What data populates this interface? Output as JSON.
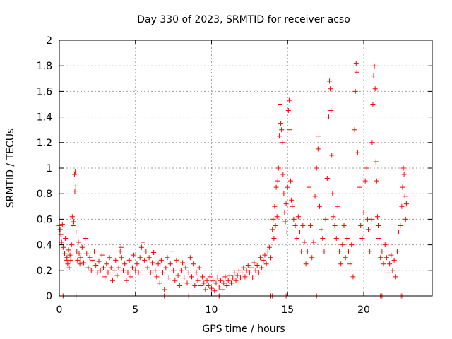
{
  "chart_data": {
    "type": "scatter",
    "title": "Day 330 of 2023, SRMTID for receiver acso",
    "xlabel": "GPS time / hours",
    "ylabel": "SRMTID / TECUs",
    "xlim": [
      0,
      24.5
    ],
    "ylim": [
      0,
      2
    ],
    "xticks": [
      0,
      5,
      10,
      15,
      20
    ],
    "xtick_labels": [
      "0",
      "5",
      "10",
      "15",
      "20"
    ],
    "yticks": [
      0,
      0.2,
      0.4,
      0.6,
      0.8,
      1,
      1.2,
      1.4,
      1.6,
      1.8,
      2
    ],
    "ytick_labels": [
      "0",
      "0.2",
      "0.4",
      "0.6",
      "0.8",
      "1",
      "1.2",
      "1.4",
      "1.6",
      "1.8",
      "2"
    ],
    "grid": true,
    "marker": "+",
    "color": "#ff0000",
    "series": [
      {
        "name": "acso",
        "points": [
          [
            0.0,
            0.55
          ],
          [
            0.05,
            0.52
          ],
          [
            0.1,
            0.48
          ],
          [
            0.15,
            0.42
          ],
          [
            0.2,
            0.56
          ],
          [
            0.25,
            0.38
          ],
          [
            0.3,
            0.5
          ],
          [
            0.35,
            0.33
          ],
          [
            0.4,
            0.45
          ],
          [
            0.45,
            0.28
          ],
          [
            0.5,
            0.3
          ],
          [
            0.55,
            0.25
          ],
          [
            0.6,
            0.36
          ],
          [
            0.65,
            0.22
          ],
          [
            0.7,
            0.32
          ],
          [
            0.75,
            0.28
          ],
          [
            0.8,
            0.4
          ],
          [
            0.85,
            0.62
          ],
          [
            0.9,
            0.55
          ],
          [
            0.95,
            0.58
          ],
          [
            1.0,
            0.95
          ],
          [
            1.02,
            0.82
          ],
          [
            1.05,
            0.97
          ],
          [
            1.08,
            0.86
          ],
          [
            1.1,
            0.5
          ],
          [
            1.15,
            0.35
          ],
          [
            1.2,
            0.28
          ],
          [
            1.25,
            0.42
          ],
          [
            1.3,
            0.33
          ],
          [
            1.35,
            0.25
          ],
          [
            1.4,
            0.3
          ],
          [
            1.5,
            0.38
          ],
          [
            1.6,
            0.26
          ],
          [
            1.7,
            0.45
          ],
          [
            1.8,
            0.33
          ],
          [
            1.9,
            0.22
          ],
          [
            2.0,
            0.3
          ],
          [
            2.1,
            0.2
          ],
          [
            2.2,
            0.28
          ],
          [
            2.3,
            0.35
          ],
          [
            2.4,
            0.24
          ],
          [
            2.5,
            0.18
          ],
          [
            2.6,
            0.27
          ],
          [
            2.7,
            0.2
          ],
          [
            2.8,
            0.32
          ],
          [
            2.9,
            0.22
          ],
          [
            3.0,
            0.15
          ],
          [
            3.1,
            0.25
          ],
          [
            3.2,
            0.18
          ],
          [
            3.3,
            0.3
          ],
          [
            3.4,
            0.22
          ],
          [
            3.5,
            0.12
          ],
          [
            3.6,
            0.2
          ],
          [
            3.7,
            0.28
          ],
          [
            3.8,
            0.16
          ],
          [
            3.9,
            0.22
          ],
          [
            4.0,
            0.35
          ],
          [
            4.05,
            0.38
          ],
          [
            4.1,
            0.3
          ],
          [
            4.2,
            0.2
          ],
          [
            4.3,
            0.25
          ],
          [
            4.4,
            0.12
          ],
          [
            4.5,
            0.18
          ],
          [
            4.6,
            0.28
          ],
          [
            4.7,
            0.15
          ],
          [
            4.8,
            0.22
          ],
          [
            4.9,
            0.32
          ],
          [
            5.0,
            0.2
          ],
          [
            5.1,
            0.25
          ],
          [
            5.2,
            0.18
          ],
          [
            5.3,
            0.3
          ],
          [
            5.4,
            0.38
          ],
          [
            5.5,
            0.42
          ],
          [
            5.6,
            0.28
          ],
          [
            5.7,
            0.35
          ],
          [
            5.8,
            0.22
          ],
          [
            5.9,
            0.3
          ],
          [
            6.0,
            0.18
          ],
          [
            6.1,
            0.26
          ],
          [
            6.2,
            0.34
          ],
          [
            6.3,
            0.2
          ],
          [
            6.4,
            0.15
          ],
          [
            6.5,
            0.25
          ],
          [
            6.6,
            0.1
          ],
          [
            6.7,
            0.28
          ],
          [
            6.8,
            0.18
          ],
          [
            6.9,
            0.05
          ],
          [
            7.0,
            0.22
          ],
          [
            7.1,
            0.3
          ],
          [
            7.2,
            0.14
          ],
          [
            7.3,
            0.25
          ],
          [
            7.4,
            0.35
          ],
          [
            7.5,
            0.2
          ],
          [
            7.6,
            0.12
          ],
          [
            7.7,
            0.28
          ],
          [
            7.8,
            0.16
          ],
          [
            7.9,
            0.08
          ],
          [
            8.0,
            0.2
          ],
          [
            8.1,
            0.26
          ],
          [
            8.2,
            0.14
          ],
          [
            8.3,
            0.22
          ],
          [
            8.4,
            0.1
          ],
          [
            8.5,
            0.18
          ],
          [
            8.6,
            0.3
          ],
          [
            8.7,
            0.15
          ],
          [
            8.8,
            0.25
          ],
          [
            8.9,
            0.08
          ],
          [
            9.0,
            0.18
          ],
          [
            9.1,
            0.12
          ],
          [
            9.2,
            0.22
          ],
          [
            9.3,
            0.08
          ],
          [
            9.4,
            0.15
          ],
          [
            9.5,
            0.1
          ],
          [
            9.6,
            0.05
          ],
          [
            9.7,
            0.12
          ],
          [
            9.8,
            0.08
          ],
          [
            9.9,
            0.15
          ],
          [
            10.0,
            0.06
          ],
          [
            10.1,
            0.12
          ],
          [
            10.2,
            0.04
          ],
          [
            10.3,
            0.1
          ],
          [
            10.4,
            0.14
          ],
          [
            10.5,
            0.07
          ],
          [
            10.6,
            0.12
          ],
          [
            10.7,
            0.05
          ],
          [
            10.8,
            0.1
          ],
          [
            10.9,
            0.15
          ],
          [
            11.0,
            0.08
          ],
          [
            11.1,
            0.12
          ],
          [
            11.2,
            0.16
          ],
          [
            11.3,
            0.1
          ],
          [
            11.4,
            0.14
          ],
          [
            11.5,
            0.18
          ],
          [
            11.6,
            0.12
          ],
          [
            11.7,
            0.16
          ],
          [
            11.8,
            0.2
          ],
          [
            11.9,
            0.14
          ],
          [
            12.0,
            0.18
          ],
          [
            12.1,
            0.22
          ],
          [
            12.2,
            0.15
          ],
          [
            12.3,
            0.2
          ],
          [
            12.4,
            0.24
          ],
          [
            12.5,
            0.18
          ],
          [
            12.6,
            0.22
          ],
          [
            12.7,
            0.14
          ],
          [
            12.8,
            0.26
          ],
          [
            12.9,
            0.2
          ],
          [
            13.0,
            0.24
          ],
          [
            13.1,
            0.18
          ],
          [
            13.2,
            0.3
          ],
          [
            13.3,
            0.22
          ],
          [
            13.4,
            0.28
          ],
          [
            13.5,
            0.32
          ],
          [
            13.6,
            0.25
          ],
          [
            13.7,
            0.35
          ],
          [
            13.8,
            0.38
          ],
          [
            13.9,
            0.3
          ],
          [
            14.0,
            0.52
          ],
          [
            14.05,
            0.6
          ],
          [
            14.1,
            0.45
          ],
          [
            14.15,
            0.7
          ],
          [
            14.2,
            0.55
          ],
          [
            14.25,
            0.85
          ],
          [
            14.3,
            0.62
          ],
          [
            14.35,
            0.9
          ],
          [
            14.4,
            1.0
          ],
          [
            14.45,
            1.25
          ],
          [
            14.5,
            1.5
          ],
          [
            14.55,
            1.35
          ],
          [
            14.6,
            1.3
          ],
          [
            14.65,
            1.2
          ],
          [
            14.7,
            0.95
          ],
          [
            14.75,
            0.8
          ],
          [
            14.8,
            0.65
          ],
          [
            14.85,
            0.58
          ],
          [
            14.9,
            0.72
          ],
          [
            14.95,
            0.5
          ],
          [
            15.0,
            0.85
          ],
          [
            15.05,
            1.45
          ],
          [
            15.1,
            1.53
          ],
          [
            15.15,
            1.3
          ],
          [
            15.2,
            0.9
          ],
          [
            15.25,
            0.75
          ],
          [
            15.3,
            0.7
          ],
          [
            15.4,
            0.6
          ],
          [
            15.5,
            0.55
          ],
          [
            15.6,
            0.45
          ],
          [
            15.7,
            0.62
          ],
          [
            15.8,
            0.5
          ],
          [
            15.9,
            0.35
          ],
          [
            16.0,
            0.55
          ],
          [
            16.1,
            0.42
          ],
          [
            16.2,
            0.25
          ],
          [
            16.3,
            0.35
          ],
          [
            16.4,
            0.85
          ],
          [
            16.5,
            0.55
          ],
          [
            16.6,
            0.3
          ],
          [
            16.7,
            0.42
          ],
          [
            16.8,
            0.78
          ],
          [
            16.9,
            1.0
          ],
          [
            17.0,
            1.15
          ],
          [
            17.05,
            1.25
          ],
          [
            17.1,
            0.7
          ],
          [
            17.2,
            0.52
          ],
          [
            17.3,
            0.45
          ],
          [
            17.4,
            0.35
          ],
          [
            17.5,
            0.6
          ],
          [
            17.6,
            0.92
          ],
          [
            17.7,
            1.4
          ],
          [
            17.75,
            1.68
          ],
          [
            17.8,
            1.62
          ],
          [
            17.85,
            1.45
          ],
          [
            17.9,
            1.1
          ],
          [
            17.95,
            0.8
          ],
          [
            18.0,
            0.62
          ],
          [
            18.1,
            0.55
          ],
          [
            18.2,
            0.45
          ],
          [
            18.3,
            0.7
          ],
          [
            18.4,
            0.35
          ],
          [
            18.5,
            0.25
          ],
          [
            18.6,
            0.4
          ],
          [
            18.7,
            0.55
          ],
          [
            18.8,
            0.3
          ],
          [
            18.9,
            0.45
          ],
          [
            19.0,
            0.35
          ],
          [
            19.1,
            0.25
          ],
          [
            19.2,
            0.4
          ],
          [
            19.3,
            0.15
          ],
          [
            19.4,
            1.3
          ],
          [
            19.45,
            1.6
          ],
          [
            19.5,
            1.82
          ],
          [
            19.55,
            1.75
          ],
          [
            19.6,
            1.12
          ],
          [
            19.7,
            0.85
          ],
          [
            19.8,
            0.55
          ],
          [
            19.9,
            0.45
          ],
          [
            20.0,
            0.65
          ],
          [
            20.1,
            0.9
          ],
          [
            20.2,
            1.0
          ],
          [
            20.25,
            0.6
          ],
          [
            20.3,
            0.52
          ],
          [
            20.4,
            0.35
          ],
          [
            20.5,
            0.6
          ],
          [
            20.55,
            1.2
          ],
          [
            20.6,
            1.5
          ],
          [
            20.65,
            1.72
          ],
          [
            20.7,
            1.8
          ],
          [
            20.75,
            1.62
          ],
          [
            20.8,
            1.05
          ],
          [
            20.85,
            0.9
          ],
          [
            20.9,
            0.62
          ],
          [
            20.95,
            0.55
          ],
          [
            21.0,
            0.45
          ],
          [
            21.1,
            0.3
          ],
          [
            21.2,
            0.35
          ],
          [
            21.3,
            0.25
          ],
          [
            21.4,
            0.4
          ],
          [
            21.5,
            0.3
          ],
          [
            21.6,
            0.18
          ],
          [
            21.7,
            0.25
          ],
          [
            21.8,
            0.32
          ],
          [
            21.9,
            0.2
          ],
          [
            22.0,
            0.28
          ],
          [
            22.1,
            0.15
          ],
          [
            22.2,
            0.35
          ],
          [
            22.3,
            0.5
          ],
          [
            22.4,
            0.55
          ],
          [
            22.5,
            0.7
          ],
          [
            22.55,
            0.85
          ],
          [
            22.6,
            1.0
          ],
          [
            22.65,
            0.95
          ],
          [
            22.7,
            0.78
          ],
          [
            22.75,
            0.6
          ],
          [
            22.8,
            0.72
          ],
          [
            0.25,
            0.0
          ],
          [
            1.1,
            0.0
          ],
          [
            6.9,
            0.0
          ],
          [
            8.5,
            0.0
          ],
          [
            10.5,
            0.0
          ],
          [
            13.9,
            0.0
          ],
          [
            14.0,
            0.0
          ],
          [
            14.9,
            0.0
          ],
          [
            16.9,
            0.0
          ],
          [
            21.1,
            0.0
          ],
          [
            21.2,
            0.0
          ],
          [
            22.4,
            0.0
          ],
          [
            22.5,
            0.0
          ]
        ]
      }
    ]
  }
}
